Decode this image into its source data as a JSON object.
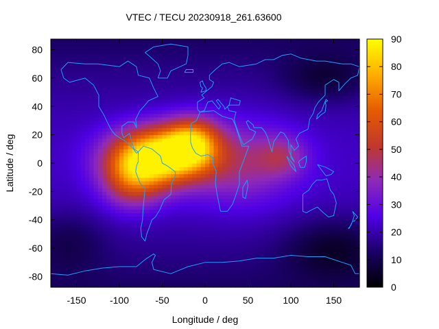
{
  "chart_data": {
    "type": "heatmap",
    "title": "VTEC / TECU 20230918_261.63600",
    "xlabel": "Longitude / deg",
    "ylabel": "Latitude / deg",
    "xlim": [
      -180,
      180
    ],
    "ylim": [
      -87.5,
      87.5
    ],
    "x_ticks": [
      -150,
      -100,
      -50,
      0,
      50,
      100,
      150
    ],
    "y_ticks": [
      -80,
      -60,
      -40,
      -20,
      0,
      20,
      40,
      60,
      80
    ],
    "x_tick_labels": [
      "-150",
      "-100",
      "-50",
      "0",
      "50",
      "100",
      "150"
    ],
    "y_tick_labels": [
      "-80",
      "-60",
      "-40",
      "-20",
      "0",
      "20",
      "40",
      "60",
      "80"
    ],
    "colorbar": {
      "range": [
        0,
        90
      ],
      "ticks": [
        0,
        10,
        20,
        30,
        40,
        50,
        60,
        70,
        80,
        90
      ],
      "tick_labels": [
        "0",
        "10",
        "20",
        "30",
        "40",
        "50",
        "60",
        "70",
        "80",
        "90"
      ],
      "colormap": [
        "#000000",
        "#1a0066",
        "#5000e6",
        "#8e2ab8",
        "#c0392b",
        "#e65c00",
        "#ffae00",
        "#ffff00"
      ]
    },
    "grid": false,
    "overlay": "coastlines",
    "overlay_color": "#1aa3ff",
    "grid_resolution_deg": [
      5,
      2.5
    ],
    "tec_features": [
      {
        "region": "equatorial anomaly core (South America / Atlantic)",
        "lon": -60,
        "lat": 5,
        "peak_tecu": 88
      },
      {
        "region": "secondary crest (West Africa)",
        "lon": -15,
        "lat": 15,
        "peak_tecu": 80
      },
      {
        "region": "southern crest",
        "lon": -75,
        "lat": -15,
        "peak_tecu": 60
      },
      {
        "region": "eastern tail (Indian Ocean)",
        "lon": 80,
        "lat": 0,
        "peak_tecu": 42
      },
      {
        "region": "background mid-latitude",
        "lon": 120,
        "lat": -30,
        "peak_tecu": 25
      },
      {
        "region": "polar minimum",
        "lon": 150,
        "lat": -60,
        "peak_tecu": 8
      }
    ]
  }
}
